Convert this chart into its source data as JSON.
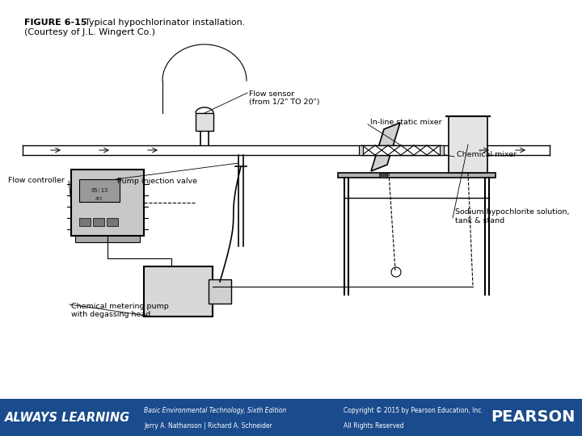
{
  "title_bold": "FIGURE 6-15",
  "title_text": "  Typical hypochlorinator installation.",
  "subtitle": "(Courtesy of J.L. Wingert Co.)",
  "bg_color": "#ffffff",
  "diagram_color": "#000000",
  "footer_bg": "#1a4b8c",
  "footer_text_color": "#ffffff",
  "footer_left_line1": "Basic Environmental Technology, Sixth Edition",
  "footer_left_line2": "Jerry A. Nathanson | Richard A. Schneider",
  "footer_right_line1": "Copyright © 2015 by Pearson Education, Inc.",
  "footer_right_line2": "All Rights Reserved",
  "footer_always": "ALWAYS LEARNING",
  "footer_pearson": "PEARSON",
  "labels": {
    "flow_sensor": "Flow sensor\n(from 1/2\" TO 20\")",
    "inline_mixer": "In-line static mixer",
    "pump_injection": "Pump injection valve",
    "chemical_mixer": "Chemical mixer",
    "flow_controller": "Flow controller",
    "sodium_hypo": "Sodium hypochlorite solution,\ntank & stand",
    "chem_pump": "Chemical metering pump\nwith degassing head"
  }
}
